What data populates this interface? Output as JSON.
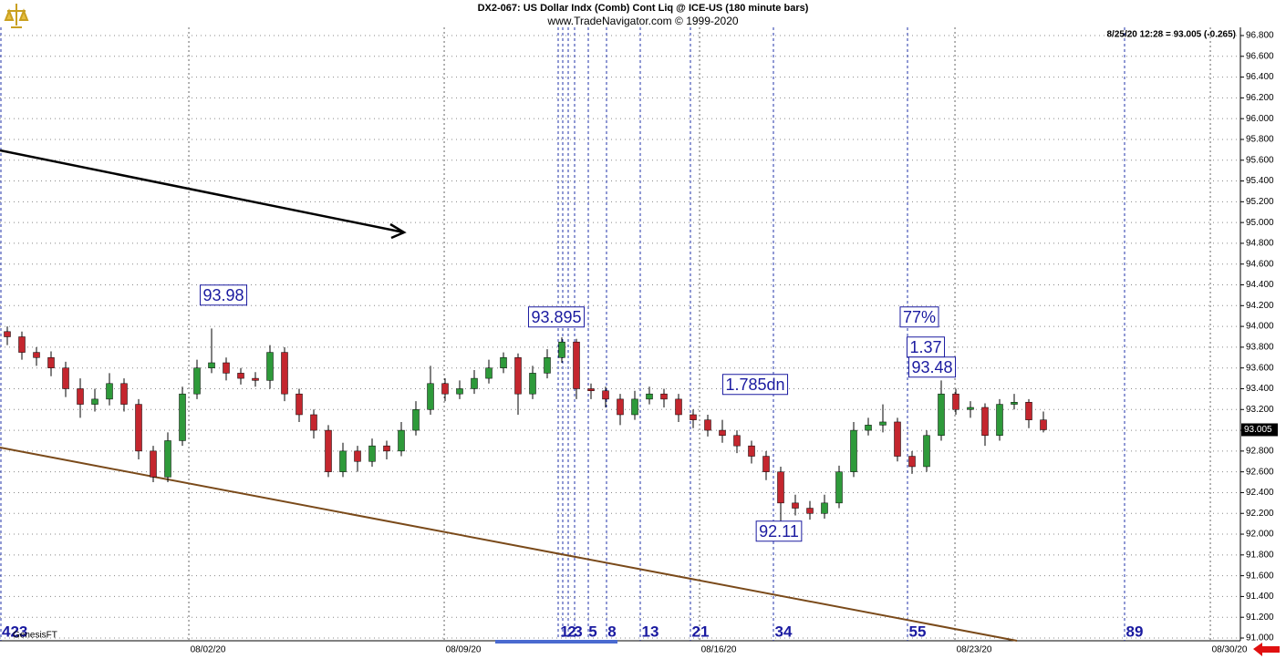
{
  "chart_data": {
    "type": "candlestick",
    "title": "DX2-067:  US Dollar Indx (Comb) Cont Liq @ ICE-US  (180 minute bars)",
    "subtitle": "www.TradeNavigator.com © 1999-2020",
    "quote": "8/25/20 12:28 = 93.005 (-0.265)",
    "watermark": "GenesisFT",
    "last_price": 93.005,
    "last_price_label": "93.005",
    "up_color": "#2e9a3a",
    "down_color": "#c4262e",
    "grid": true,
    "ylim": [
      91.0,
      96.8
    ],
    "yticks": [
      {
        "value": 91.0,
        "label": "91.000"
      },
      {
        "value": 91.2,
        "label": "91.200"
      },
      {
        "value": 91.4,
        "label": "91.400"
      },
      {
        "value": 91.6,
        "label": "91.600"
      },
      {
        "value": 91.8,
        "label": "91.800"
      },
      {
        "value": 92.0,
        "label": "92.000"
      },
      {
        "value": 92.2,
        "label": "92.200"
      },
      {
        "value": 92.4,
        "label": "92.400"
      },
      {
        "value": 92.6,
        "label": "92.600"
      },
      {
        "value": 92.8,
        "label": "92.800"
      },
      {
        "value": 93.0,
        "label": "93.000"
      },
      {
        "value": 93.2,
        "label": "93.200"
      },
      {
        "value": 93.4,
        "label": "93.400"
      },
      {
        "value": 93.6,
        "label": "93.600"
      },
      {
        "value": 93.8,
        "label": "93.800"
      },
      {
        "value": 94.0,
        "label": "94.000"
      },
      {
        "value": 94.2,
        "label": "94.200"
      },
      {
        "value": 94.4,
        "label": "94.400"
      },
      {
        "value": 94.6,
        "label": "94.600"
      },
      {
        "value": 94.8,
        "label": "94.800"
      },
      {
        "value": 95.0,
        "label": "95.000"
      },
      {
        "value": 95.2,
        "label": "95.200"
      },
      {
        "value": 95.4,
        "label": "95.400"
      },
      {
        "value": 95.6,
        "label": "95.600"
      },
      {
        "value": 95.8,
        "label": "95.800"
      },
      {
        "value": 96.0,
        "label": "96.000"
      },
      {
        "value": 96.2,
        "label": "96.200"
      },
      {
        "value": 96.4,
        "label": "96.400"
      },
      {
        "value": 96.6,
        "label": "96.600"
      },
      {
        "value": 96.8,
        "label": "96.800"
      }
    ],
    "xlim": [
      -0.5,
      84.5
    ],
    "xticks": [
      {
        "value": 12.44,
        "label": "08/02/20"
      },
      {
        "value": 29.94,
        "label": "08/09/20"
      },
      {
        "value": 47.44,
        "label": "08/16/20"
      },
      {
        "value": 64.94,
        "label": "08/23/20"
      },
      {
        "value": 82.44,
        "label": "08/30/20"
      }
    ],
    "open": [
      93.95,
      93.9,
      93.75,
      93.7,
      93.6,
      93.4,
      93.25,
      93.3,
      93.45,
      93.25,
      92.8,
      92.55,
      92.9,
      93.35,
      93.6,
      93.65,
      93.55,
      93.5,
      93.48,
      93.75,
      93.35,
      93.15,
      93.0,
      92.6,
      92.8,
      92.7,
      92.85,
      92.8,
      93.0,
      93.2,
      93.45,
      93.35,
      93.4,
      93.5,
      93.6,
      93.7,
      93.35,
      93.55,
      93.7,
      93.85,
      93.4,
      93.38,
      93.3,
      93.15,
      93.3,
      93.35,
      93.3,
      93.15,
      93.1,
      93.0,
      92.95,
      92.85,
      92.75,
      92.6,
      92.3,
      92.25,
      92.2,
      92.3,
      92.6,
      93.0,
      93.05,
      93.08,
      92.75,
      92.65,
      92.95,
      93.35,
      93.2,
      93.22,
      92.95,
      93.25,
      93.27,
      93.1
    ],
    "high": [
      94.0,
      93.95,
      93.8,
      93.76,
      93.66,
      93.5,
      93.4,
      93.55,
      93.5,
      93.3,
      92.85,
      92.98,
      93.42,
      93.68,
      93.98,
      93.7,
      93.6,
      93.56,
      93.82,
      93.8,
      93.4,
      93.2,
      93.05,
      92.88,
      92.85,
      92.92,
      92.9,
      93.08,
      93.28,
      93.62,
      93.5,
      93.48,
      93.58,
      93.68,
      93.75,
      93.74,
      93.62,
      93.78,
      93.895,
      93.88,
      93.45,
      93.42,
      93.35,
      93.38,
      93.42,
      93.4,
      93.35,
      93.2,
      93.15,
      93.1,
      93.0,
      92.9,
      92.8,
      92.65,
      92.38,
      92.32,
      92.38,
      92.66,
      93.08,
      93.12,
      93.25,
      93.12,
      92.8,
      93.0,
      93.48,
      93.4,
      93.28,
      93.26,
      93.3,
      93.35,
      93.3,
      93.18
    ],
    "low": [
      93.82,
      93.68,
      93.62,
      93.52,
      93.32,
      93.12,
      93.18,
      93.24,
      93.18,
      92.72,
      92.5,
      92.5,
      92.85,
      93.3,
      93.55,
      93.48,
      93.44,
      93.42,
      93.4,
      93.28,
      93.08,
      92.92,
      92.55,
      92.55,
      92.6,
      92.65,
      92.72,
      92.75,
      92.95,
      93.15,
      93.28,
      93.3,
      93.35,
      93.45,
      93.55,
      93.15,
      93.3,
      93.5,
      93.65,
      93.3,
      93.3,
      93.22,
      93.05,
      93.1,
      93.25,
      93.22,
      93.08,
      93.02,
      92.94,
      92.88,
      92.78,
      92.68,
      92.52,
      92.11,
      92.18,
      92.14,
      92.15,
      92.25,
      92.55,
      92.95,
      92.98,
      92.7,
      92.58,
      92.6,
      92.9,
      93.15,
      93.12,
      92.85,
      92.9,
      93.2,
      93.02,
      92.98
    ],
    "close": [
      93.9,
      93.75,
      93.7,
      93.6,
      93.4,
      93.25,
      93.3,
      93.45,
      93.25,
      92.8,
      92.55,
      92.9,
      93.35,
      93.6,
      93.65,
      93.55,
      93.5,
      93.48,
      93.75,
      93.35,
      93.15,
      93.0,
      92.6,
      92.8,
      92.7,
      92.85,
      92.8,
      93.0,
      93.2,
      93.45,
      93.35,
      93.4,
      93.5,
      93.6,
      93.7,
      93.35,
      93.55,
      93.7,
      93.85,
      93.4,
      93.38,
      93.3,
      93.15,
      93.3,
      93.35,
      93.3,
      93.15,
      93.1,
      93.0,
      92.95,
      92.85,
      92.75,
      92.6,
      92.3,
      92.25,
      92.2,
      92.3,
      92.6,
      93.0,
      93.05,
      93.08,
      92.75,
      92.65,
      92.95,
      93.35,
      93.2,
      93.22,
      92.95,
      93.25,
      93.27,
      93.1,
      93.005
    ],
    "fib_labels": [
      "423",
      "1",
      "2",
      "3",
      "5",
      "8",
      "13",
      "21",
      "34",
      "55",
      "89"
    ],
    "annotations": [
      "93.98",
      "93.895",
      "77%",
      "1.37",
      "93.48",
      "1.785dn",
      "92.11"
    ]
  }
}
